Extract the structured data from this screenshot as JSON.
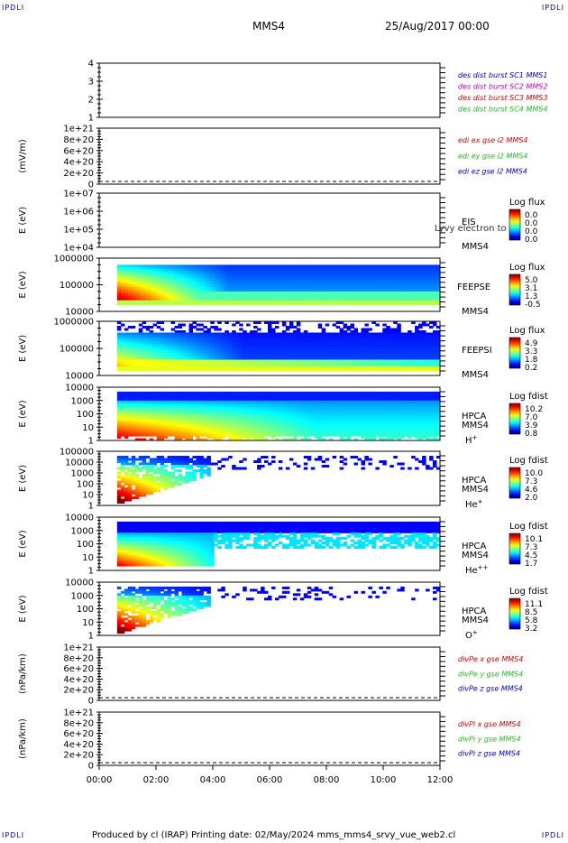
{
  "corners": {
    "tl": "IPDLI",
    "tr": "IPDLI",
    "bl": "IPDLI",
    "br": "IPDLI"
  },
  "header": {
    "spacecraft": "MMS4",
    "date": "25/Aug/2017 00:00"
  },
  "footer": {
    "text": "Produced by cl (IRAP)   Printing date: 02/May/2024   mms_mms4_srvy_vue_web2.cl"
  },
  "colors": {
    "red": "#dd0000",
    "green": "#22bb22",
    "blue": "#0000cc",
    "magenta": "#cc00cc"
  },
  "chart_data": {
    "type": "heatmap",
    "x_time_labels": [
      "00:00",
      "02:00",
      "04:00",
      "06:00",
      "08:00",
      "10:00",
      "12:00"
    ],
    "xlim_hours": [
      0,
      12
    ],
    "panels": [
      {
        "id": "p1",
        "kind": "line",
        "ylabel": "",
        "yticks": [
          "1",
          "2",
          "3",
          "4"
        ],
        "ylim": [
          1,
          4
        ],
        "legend": [
          {
            "text": "des dist burst SC1 MMS1",
            "color": "blue"
          },
          {
            "text": "des dist burst SC2 MMS2",
            "color": "magenta"
          },
          {
            "text": "des dist burst SC3 MMS3",
            "color": "red"
          },
          {
            "text": "des dist burst SC4 MMS4",
            "color": "green"
          }
        ]
      },
      {
        "id": "p2",
        "kind": "line",
        "ylabel": "(mV/m)",
        "yticks": [
          "0",
          "2e+20",
          "4e+20",
          "6e+20",
          "8e+20",
          "1e+21"
        ],
        "ylim": [
          0,
          1e+21
        ],
        "legend": [
          {
            "text": "edi ex gse l2 MMS4",
            "color": "red"
          },
          {
            "text": "edi ey gse l2 MMS4",
            "color": "green"
          },
          {
            "text": "edi ez gse l2 MMS4",
            "color": "blue"
          }
        ]
      },
      {
        "id": "p3",
        "kind": "spec",
        "ylabel": "E (eV)",
        "yticks": [
          "1e+04",
          "1e+05",
          "1e+06",
          "1e+07"
        ],
        "instrument": "EIS",
        "sc": "MMS4",
        "overlap_text": "Lyvy electron to",
        "cbtitle": "Log flux",
        "cbvals": [
          "0.0",
          "0.0",
          "0.0",
          "0.0"
        ]
      },
      {
        "id": "p4",
        "kind": "spec",
        "ylabel": "E (eV)",
        "yticks": [
          "10000",
          "100000",
          "1000000"
        ],
        "instrument": "FEEPSE",
        "sc": "MMS4",
        "cbtitle": "Log flux",
        "cbvals": [
          "5.0",
          "3.1",
          "1.3",
          "-0.5"
        ]
      },
      {
        "id": "p5",
        "kind": "spec",
        "ylabel": "E (eV)",
        "yticks": [
          "10000",
          "100000",
          "1000000"
        ],
        "instrument": "FEEPSI",
        "sc": "MMS4",
        "cbtitle": "Log flux",
        "cbvals": [
          "4.9",
          "3.3",
          "1.8",
          "0.2"
        ]
      },
      {
        "id": "p6",
        "kind": "spec",
        "ylabel": "E (eV)",
        "yticks": [
          "1",
          "10",
          "100",
          "1000",
          "10000"
        ],
        "instrument": "HPCA",
        "sc": "MMS4",
        "species": "H",
        "species_sup": "+",
        "cbtitle": "Log fdist",
        "cbvals": [
          "10.2",
          "7.0",
          "3.9",
          "0.8"
        ]
      },
      {
        "id": "p7",
        "kind": "spec",
        "ylabel": "E (eV)",
        "yticks": [
          "1",
          "10",
          "100",
          "1000",
          "10000",
          "100000"
        ],
        "instrument": "HPCA",
        "sc": "MMS4",
        "species": "He",
        "species_sup": "+",
        "cbtitle": "Log fdist",
        "cbvals": [
          "10.0",
          "7.3",
          "4.6",
          "2.0"
        ]
      },
      {
        "id": "p8",
        "kind": "spec",
        "ylabel": "E (eV)",
        "yticks": [
          "1",
          "10",
          "100",
          "1000",
          "10000"
        ],
        "instrument": "HPCA",
        "sc": "MMS4",
        "species": "He",
        "species_sup": "++",
        "cbtitle": "Log fdist",
        "cbvals": [
          "10.1",
          "7.3",
          "4.5",
          "1.7"
        ]
      },
      {
        "id": "p9",
        "kind": "spec",
        "ylabel": "E (eV)",
        "yticks": [
          "1",
          "10",
          "100",
          "1000",
          "10000"
        ],
        "instrument": "HPCA",
        "sc": "MMS4",
        "species": "O",
        "species_sup": "+",
        "cbtitle": "Log fdist",
        "cbvals": [
          "11.1",
          "8.5",
          "5.8",
          "3.2"
        ]
      },
      {
        "id": "p10",
        "kind": "line",
        "ylabel": "(nPa/km)",
        "yticks": [
          "0",
          "2e+20",
          "4e+20",
          "6e+20",
          "8e+20",
          "1e+21"
        ],
        "ylim": [
          0,
          1e+21
        ],
        "legend": [
          {
            "text": "divPe x gse MMS4",
            "color": "red"
          },
          {
            "text": "divPe y gse MMS4",
            "color": "green"
          },
          {
            "text": "divPe z gse MMS4",
            "color": "blue"
          }
        ]
      },
      {
        "id": "p11",
        "kind": "line",
        "ylabel": "(nPa/km)",
        "yticks": [
          "0",
          "2e+20",
          "4e+20",
          "6e+20",
          "8e+20",
          "1e+21"
        ],
        "ylim": [
          0,
          1e+21
        ],
        "legend": [
          {
            "text": "divPi x gse MMS4",
            "color": "red"
          },
          {
            "text": "divPi y gse MMS4",
            "color": "green"
          },
          {
            "text": "divPi z gse MMS4",
            "color": "blue"
          }
        ]
      }
    ]
  }
}
